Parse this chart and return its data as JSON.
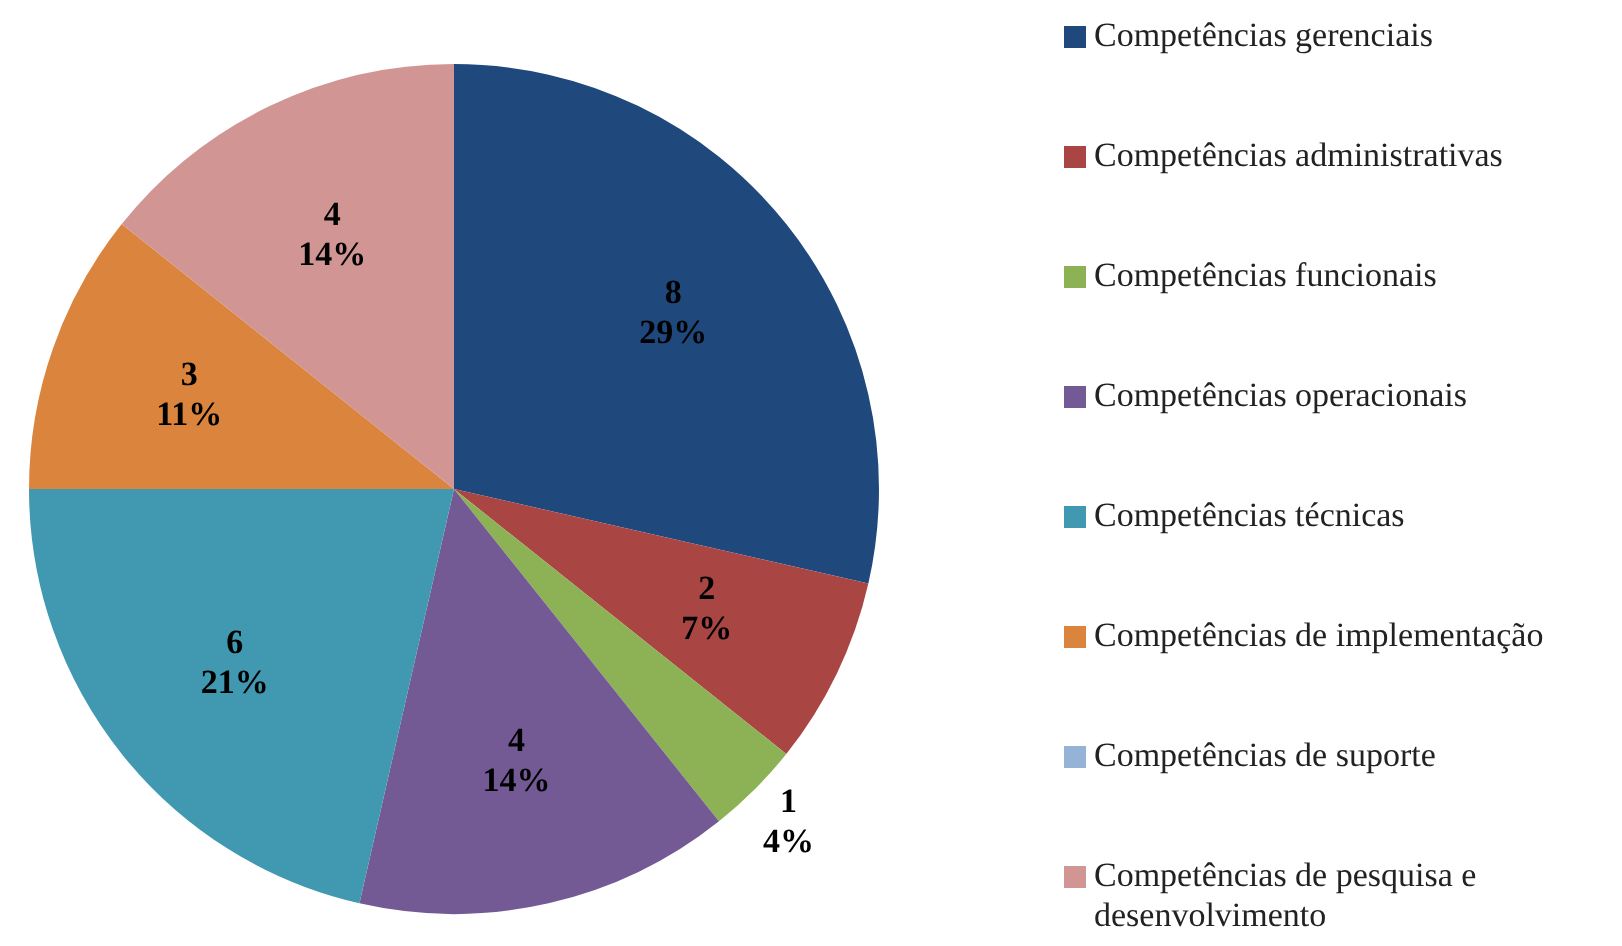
{
  "chart_data": {
    "type": "pie",
    "categories": [
      "Competências gerenciais",
      "Competências administrativas",
      "Competências funcionais",
      "Competências operacionais",
      "Competências técnicas",
      "Competências de implementação",
      "Competências de suporte",
      "Competências de pesquisa e desenvolvimento"
    ],
    "values": [
      8,
      2,
      1,
      4,
      6,
      3,
      0,
      4
    ],
    "colors": [
      "#1f497d",
      "#a94543",
      "#8db255",
      "#735a95",
      "#4198b1",
      "#db843d",
      "#95b3d7",
      "#d19594"
    ],
    "value_labels": [
      "8\n29%",
      "2\n7%",
      "1\n4%",
      "4\n14%",
      "6\n21%",
      "3\n11%",
      null,
      "4\n14%"
    ],
    "legend": "right"
  }
}
